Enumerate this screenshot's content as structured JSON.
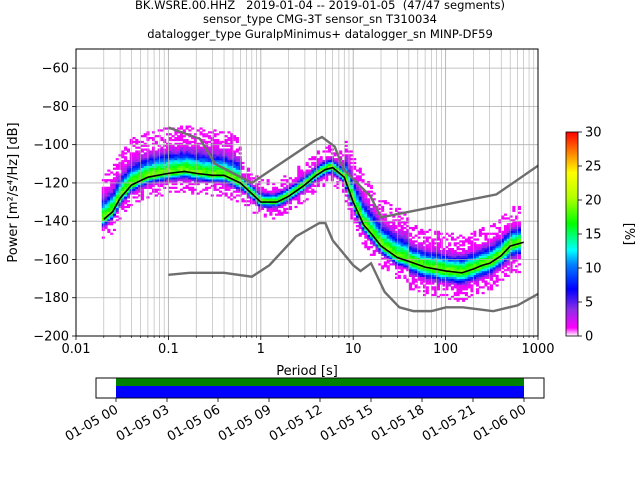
{
  "title": {
    "line1": "BK.WSRE.00.HHZ   2019-01-04 -- 2019-01-05  (47/47 segments)",
    "line2": "sensor_type CMG-3T sensor_sn T310034",
    "line3": "datalogger_type GuralpMinimus+ datalogger_sn MINP-DF59"
  },
  "chart_data": [
    {
      "type": "heatmap",
      "xlabel": "Period [s]",
      "ylabel": "Power [m²/s⁴/Hz] [dB]",
      "x_scale": "log",
      "xlim": [
        0.01,
        1000
      ],
      "ylim": [
        -200,
        -50
      ],
      "x_ticks": [
        0.01,
        0.1,
        1,
        10,
        100,
        1000
      ],
      "x_tick_labels": [
        "0.01",
        "0.1",
        "1",
        "10",
        "100",
        "1000"
      ],
      "y_ticks": [
        -200,
        -180,
        -160,
        -140,
        -120,
        -100,
        -80,
        -60
      ],
      "y_tick_labels": [
        "−200",
        "−180",
        "−160",
        "−140",
        "−120",
        "−100",
        "−80",
        "−60"
      ],
      "grid": true,
      "colorbar": {
        "label": "[%]",
        "range": [
          0,
          30
        ],
        "ticks": [
          0,
          5,
          10,
          15,
          20,
          25,
          30
        ],
        "tick_labels": [
          "0",
          "5",
          "10",
          "15",
          "20",
          "25",
          "30"
        ],
        "colormap": "pqlx"
      },
      "median": {
        "period": [
          0.02,
          0.025,
          0.03,
          0.04,
          0.06,
          0.1,
          0.15,
          0.2,
          0.3,
          0.4,
          0.6,
          1.0,
          1.5,
          2,
          3,
          4,
          5,
          6,
          8,
          10,
          13,
          16,
          20,
          30,
          40,
          60,
          100,
          150,
          200,
          250,
          300,
          400,
          500,
          700
        ],
        "power": [
          -139,
          -135,
          -128,
          -121,
          -117,
          -115,
          -114,
          -115,
          -116,
          -116,
          -120,
          -130,
          -130,
          -127,
          -121,
          -116,
          -113,
          -112,
          -117,
          -130,
          -142,
          -147,
          -153,
          -159,
          -161,
          -164,
          -166,
          -167,
          -165,
          -163,
          -162,
          -158,
          -153,
          -151
        ]
      },
      "nlnm": {
        "period": [
          0.1,
          0.17,
          0.4,
          0.8,
          1.24,
          2.4,
          4.3,
          5.0,
          6.0,
          10.0,
          12,
          15.6,
          21.9,
          31.6,
          45,
          70,
          101,
          154,
          328,
          600,
          1000
        ],
        "power": [
          -168,
          -167,
          -167,
          -169,
          -163,
          -148,
          -141,
          -141,
          -150,
          -163,
          -166,
          -162,
          -177,
          -185,
          -187,
          -187,
          -185,
          -185,
          -187,
          -184,
          -178
        ]
      },
      "nhnm": {
        "period": [
          0.1,
          0.22,
          0.32,
          0.8,
          3.8,
          4.6,
          6.3,
          7.9,
          15.4,
          20,
          354.8,
          1000
        ],
        "power": [
          -91,
          -97,
          -110,
          -120,
          -98,
          -96,
          -101,
          -113,
          -127,
          -138,
          -126,
          -111
        ]
      }
    },
    {
      "type": "heatmap",
      "x_tick_labels": [
        "01-05 00",
        "01-05 03",
        "01-05 06",
        "01-05 09",
        "01-05 12",
        "01-05 15",
        "01-05 18",
        "01-05 21",
        "01-06 00"
      ],
      "coverage_start": "01-05 00",
      "coverage_end": "01-06 00",
      "colors": [
        "#008000",
        "#0000ff"
      ]
    }
  ]
}
